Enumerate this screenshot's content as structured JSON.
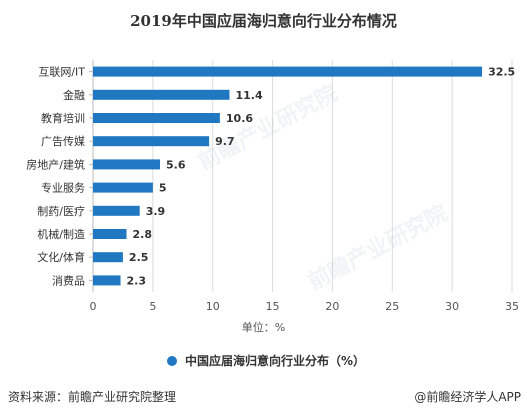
{
  "chart_data": {
    "type": "bar",
    "orientation": "horizontal",
    "title": "2019年中国应届海归意向行业分布情况",
    "categories": [
      "互联网/IT",
      "金融",
      "教育培训",
      "广告传媒",
      "房地产/建筑",
      "专业服务",
      "制药/医疗",
      "机械/制造",
      "文化/体育",
      "消费品"
    ],
    "series": [
      {
        "name": "中国应届海归意向行业分布（%）",
        "values": [
          32.5,
          11.4,
          10.6,
          9.7,
          5.6,
          5,
          3.9,
          2.8,
          2.5,
          2.3
        ]
      }
    ],
    "value_labels": [
      "32.5",
      "11.4",
      "10.6",
      "9.7",
      "5.6",
      "5",
      "3.9",
      "2.8",
      "2.5",
      "2.3"
    ],
    "xlim": [
      0,
      35
    ],
    "xticks": [
      0,
      5,
      10,
      15,
      20,
      25,
      30,
      35
    ],
    "xlabel": "单位：%",
    "grid": "vertical",
    "legend_position": "bottom",
    "colors": {
      "bar": "#1f78c1",
      "grid": "#dcdcdc",
      "axis": "#bbbbbb"
    }
  },
  "footer": {
    "source": "资料来源：前瞻产业研究院整理",
    "credit": "@前瞻经济学人APP"
  },
  "watermark": "前瞻产业研究院"
}
